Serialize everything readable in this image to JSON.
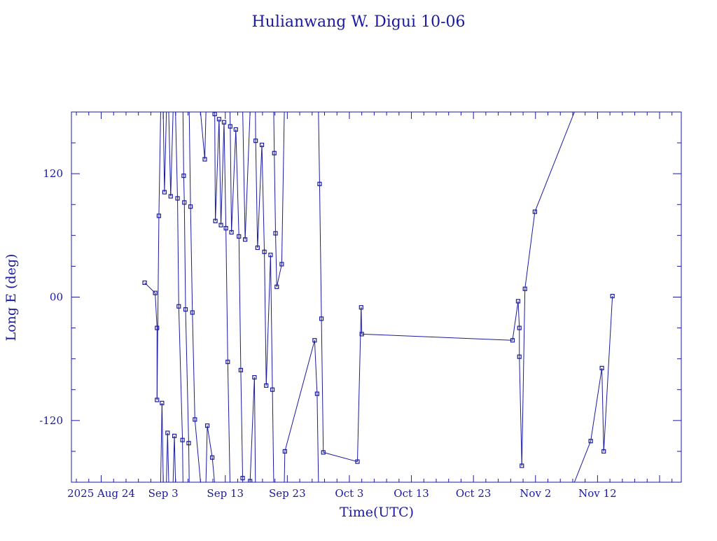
{
  "chart_data": {
    "type": "line",
    "title": "Hulianwang W. Digui 10-06",
    "xlabel": "Time(UTC)",
    "ylabel": "Long E (deg)",
    "x_tick_labels": [
      "2025 Aug 24",
      "Sep  3",
      "Sep 13",
      "Sep 23",
      "Oct  3",
      "Oct 13",
      "Oct 23",
      "Nov  2",
      "Nov 12"
    ],
    "y_tick_labels": [
      "120",
      "00",
      "-120"
    ],
    "y_tick_values": [
      120,
      0,
      -120
    ],
    "ylim": [
      -180,
      180
    ],
    "xlim_days": [
      -4.8,
      93.5
    ],
    "grid": false,
    "colors": {
      "line": "#1a1aa0",
      "axes": "#1a1aa0",
      "text": "#1a1aa0",
      "marker": "#1a1aa0"
    },
    "series": [
      {
        "points": [
          [
            7.0,
            14
          ],
          [
            8.7,
            4
          ],
          [
            9.0,
            -30
          ],
          [
            9.0,
            -100
          ],
          [
            9.3,
            79
          ],
          [
            9.8,
            -103
          ],
          [
            10.2,
            102
          ],
          [
            10.7,
            -132
          ],
          [
            11.2,
            98
          ],
          [
            11.8,
            -135
          ],
          [
            12.3,
            96
          ],
          [
            12.5,
            -9
          ],
          [
            13.1,
            -139
          ],
          [
            13.3,
            118
          ],
          [
            13.4,
            92
          ],
          [
            13.6,
            -12
          ],
          [
            14.1,
            -142
          ],
          [
            14.4,
            88
          ],
          [
            14.7,
            -15
          ],
          [
            15.1,
            -119
          ],
          [
            16.7,
            134
          ],
          [
            17.1,
            -125
          ],
          [
            17.9,
            -156
          ],
          [
            18.3,
            178
          ],
          [
            18.4,
            74
          ],
          [
            19.0,
            173
          ],
          [
            19.3,
            70
          ],
          [
            19.8,
            170
          ],
          [
            20.1,
            67
          ],
          [
            20.4,
            -63
          ],
          [
            20.8,
            166
          ],
          [
            21.0,
            63
          ],
          [
            21.7,
            163
          ],
          [
            22.2,
            59
          ],
          [
            22.5,
            -71
          ],
          [
            22.8,
            -176
          ],
          [
            23.2,
            56
          ],
          [
            24.0,
            -179
          ],
          [
            24.7,
            -78
          ],
          [
            24.9,
            152
          ],
          [
            25.2,
            48
          ],
          [
            25.9,
            148
          ],
          [
            26.3,
            44
          ],
          [
            26.6,
            -86
          ],
          [
            27.3,
            41
          ],
          [
            27.6,
            -90
          ],
          [
            27.9,
            140
          ],
          [
            28.1,
            62
          ],
          [
            28.3,
            10
          ],
          [
            29.1,
            32
          ],
          [
            29.6,
            -150
          ],
          [
            34.4,
            -42
          ],
          [
            34.8,
            -94
          ],
          [
            35.2,
            110
          ],
          [
            35.5,
            -21
          ],
          [
            35.8,
            -151
          ],
          [
            41.3,
            -160
          ],
          [
            41.9,
            -10
          ],
          [
            42.0,
            -36
          ],
          [
            66.3,
            -42
          ],
          [
            67.2,
            -4
          ],
          [
            67.4,
            -30
          ],
          [
            67.4,
            -58
          ],
          [
            67.8,
            -164
          ],
          [
            68.3,
            8
          ],
          [
            69.9,
            83
          ],
          [
            78.9,
            -140
          ],
          [
            80.7,
            -69
          ],
          [
            81.0,
            -150
          ],
          [
            82.4,
            1
          ]
        ]
      }
    ]
  }
}
